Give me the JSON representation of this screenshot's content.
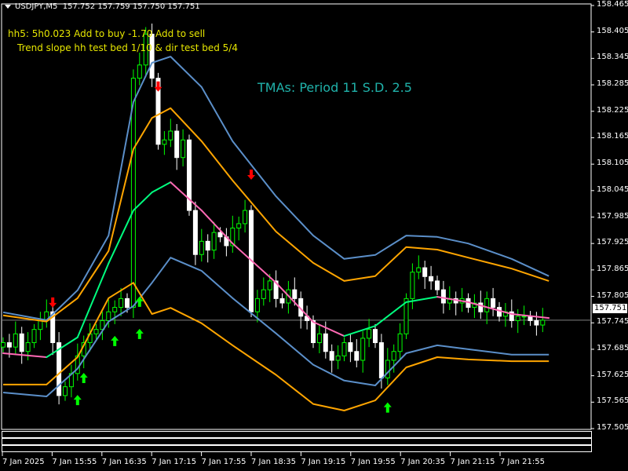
{
  "header": {
    "symbol": "USDJPY,M5",
    "open": "157.752",
    "high": "157.759",
    "low": "157.750",
    "close": "157.751",
    "menu_icon": "triangle-down-icon"
  },
  "notes": {
    "line1": "hh5: 5h0.023 Add to buy  -1.70 Add to sell",
    "line2": "Trend slope hh test bed 1/10   & dir test bed 5/4"
  },
  "tma_label": "TMAs: Period 11  S.D. 2.5",
  "price_axis": [
    "158.465",
    "158.405",
    "158.345",
    "158.285",
    "158.225",
    "158.165",
    "158.105",
    "158.045",
    "157.985",
    "157.925",
    "157.865",
    "157.805",
    "157.745",
    "157.685",
    "157.625",
    "157.565",
    "157.505"
  ],
  "current_price": "157.751",
  "time_axis": [
    "7 Jan 2025",
    "7 Jan 15:55",
    "7 Jan 16:35",
    "7 Jan 17:15",
    "7 Jan 17:55",
    "7 Jan 18:35",
    "7 Jan 19:15",
    "7 Jan 19:55",
    "7 Jan 20:35",
    "7 Jan 21:15",
    "7 Jan 21:55"
  ],
  "colors": {
    "background": "#000000",
    "bull": "#00ff00",
    "bear": "#ffffff",
    "band_outer": "#5b8fc9",
    "band_inner": "#ffa500",
    "center_up": "#00ff7f",
    "center_down": "#ff69b4",
    "arrow_up": "#00ff00",
    "arrow_down": "#ff0000",
    "price_line": "#808080"
  },
  "chart_data": {
    "type": "candlestick",
    "timeframe": "M5",
    "first_bar": "15:15",
    "closes": [
      157.7,
      157.69,
      157.72,
      157.68,
      157.7,
      157.73,
      157.75,
      157.77,
      157.7,
      157.58,
      157.6,
      157.63,
      157.67,
      157.7,
      157.72,
      157.73,
      157.75,
      157.77,
      157.78,
      157.8,
      157.78,
      158.3,
      158.33,
      158.4,
      158.3,
      158.15,
      158.16,
      158.18,
      158.12,
      158.16,
      158.0,
      157.9,
      157.93,
      157.91,
      157.95,
      157.94,
      157.92,
      157.96,
      157.97,
      158.0,
      157.77,
      157.8,
      157.82,
      157.84,
      157.8,
      157.79,
      157.82,
      157.8,
      157.76,
      157.75,
      157.7,
      157.72,
      157.68,
      157.66,
      157.67,
      157.7,
      157.68,
      157.66,
      157.71,
      157.73,
      157.7,
      157.62,
      157.66,
      157.68,
      157.72,
      157.8,
      157.86,
      157.87,
      157.85,
      157.84,
      157.82,
      157.79,
      157.8,
      157.79,
      157.8,
      157.78,
      157.79,
      157.77,
      157.8,
      157.78,
      157.76,
      157.77,
      157.75,
      157.76,
      157.76,
      157.75,
      157.74,
      157.751
    ],
    "tma_times": [
      "15:15",
      "15:50",
      "16:15",
      "16:40",
      "17:00",
      "17:15",
      "17:30",
      "17:55",
      "18:20",
      "18:55",
      "19:25",
      "19:50",
      "20:15",
      "20:40",
      "21:05",
      "21:30",
      "22:05",
      "22:35"
    ],
    "center": [
      157.676,
      157.667,
      157.712,
      157.88,
      158.0,
      158.041,
      158.064,
      158.0,
      157.925,
      157.836,
      157.747,
      157.715,
      157.738,
      157.792,
      157.804,
      157.792,
      157.765,
      157.756
    ],
    "upper_outer": [
      157.769,
      157.751,
      157.819,
      157.943,
      158.246,
      158.335,
      158.349,
      158.28,
      158.157,
      158.032,
      157.943,
      157.89,
      157.899,
      157.943,
      157.94,
      157.925,
      157.89,
      157.851
    ],
    "upper_inner": [
      157.762,
      157.748,
      157.801,
      157.908,
      158.139,
      158.21,
      158.232,
      158.157,
      158.068,
      157.952,
      157.881,
      157.84,
      157.851,
      157.917,
      157.911,
      157.893,
      157.868,
      157.84
    ],
    "lower_inner": [
      157.587,
      157.578,
      157.641,
      157.748,
      157.783,
      157.836,
      157.893,
      157.863,
      157.801,
      157.721,
      157.65,
      157.614,
      157.603,
      157.676,
      157.694,
      157.685,
      157.673,
      157.673
    ],
    "lower_outer": [
      157.605,
      157.605,
      157.667,
      157.801,
      157.836,
      157.765,
      157.779,
      157.744,
      157.694,
      157.627,
      157.561,
      157.546,
      157.569,
      157.644,
      157.667,
      157.662,
      157.658,
      157.658
    ],
    "arrows": [
      {
        "time": "15:55",
        "price": 157.792,
        "dir": "down"
      },
      {
        "time": "17:20",
        "price": 158.282,
        "dir": "down"
      },
      {
        "time": "18:35",
        "price": 158.082,
        "dir": "down"
      },
      {
        "time": "16:15",
        "price": 157.569,
        "dir": "up"
      },
      {
        "time": "16:20",
        "price": 157.619,
        "dir": "up"
      },
      {
        "time": "16:45",
        "price": 157.703,
        "dir": "up"
      },
      {
        "time": "17:05",
        "price": 157.719,
        "dir": "up"
      },
      {
        "time": "17:05",
        "price": 157.792,
        "dir": "up"
      },
      {
        "time": "20:25",
        "price": 157.552,
        "dir": "up"
      }
    ],
    "ylim": [
      157.505,
      158.465
    ]
  }
}
